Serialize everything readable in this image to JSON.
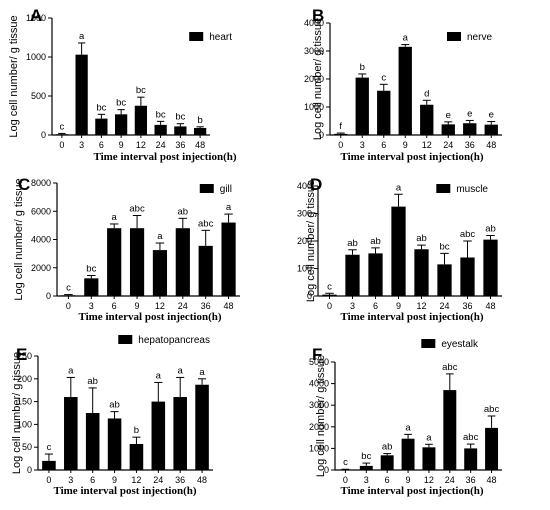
{
  "chart_data": [
    {
      "panel": "A",
      "type": "bar",
      "legend": "heart",
      "xlabel": "Time interval post injection(h)",
      "ylabel": "Log cell number/ g tissue",
      "categories": [
        "0",
        "3",
        "6",
        "9",
        "12",
        "24",
        "36",
        "48"
      ],
      "values": [
        10,
        1030,
        210,
        265,
        375,
        130,
        110,
        90
      ],
      "errors": [
        10,
        150,
        55,
        60,
        110,
        45,
        35,
        15
      ],
      "labels": [
        "c",
        "a",
        "bc",
        "bc",
        "bc",
        "bc",
        "bc",
        "b"
      ],
      "ylim": [
        0,
        1500
      ],
      "yticks": [
        "0",
        "500",
        "1000",
        "1500"
      ]
    },
    {
      "panel": "B",
      "type": "bar",
      "legend": "nerve",
      "xlabel": "Time interval post injection(h)",
      "ylabel": "Log cell number/ g tissue",
      "categories": [
        "0",
        "3",
        "6",
        "9",
        "12",
        "24",
        "36",
        "48"
      ],
      "values": [
        40,
        2050,
        1580,
        3150,
        1080,
        380,
        420,
        370
      ],
      "errors": [
        30,
        130,
        230,
        80,
        160,
        90,
        100,
        110
      ],
      "labels": [
        "f",
        "b",
        "c",
        "a",
        "d",
        "e",
        "e",
        "e"
      ],
      "ylim": [
        0,
        4000
      ],
      "yticks": [
        "0",
        "1000",
        "2000",
        "3000",
        "4000"
      ]
    },
    {
      "panel": "C",
      "type": "bar",
      "legend": "gill",
      "xlabel": "Time interval post injection(h)",
      "ylabel": "Log cell number/ g tissue",
      "categories": [
        "0",
        "3",
        "6",
        "9",
        "12",
        "24",
        "36",
        "48"
      ],
      "values": [
        50,
        1250,
        4800,
        4800,
        3250,
        4800,
        3550,
        5200
      ],
      "errors": [
        50,
        200,
        300,
        900,
        500,
        700,
        1100,
        600
      ],
      "labels": [
        "c",
        "bc",
        "a",
        "abc",
        "a",
        "ab",
        "abc",
        "a"
      ],
      "ylim": [
        0,
        8000
      ],
      "yticks": [
        "0",
        "2000",
        "4000",
        "6000",
        "8000"
      ]
    },
    {
      "panel": "D",
      "type": "bar",
      "legend": "muscle",
      "xlabel": "Time interval post injection(h)",
      "ylabel": "Log cell number/ g tissue",
      "categories": [
        "0",
        "3",
        "6",
        "9",
        "12",
        "24",
        "36",
        "48"
      ],
      "values": [
        5,
        150,
        155,
        325,
        170,
        115,
        140,
        205
      ],
      "errors": [
        5,
        18,
        20,
        45,
        15,
        40,
        60,
        15
      ],
      "labels": [
        "c",
        "ab",
        "ab",
        "a",
        "ab",
        "bc",
        "abc",
        "ab"
      ],
      "ylim": [
        0,
        400
      ],
      "yticks": [
        "0",
        "100",
        "200",
        "300",
        "400"
      ]
    },
    {
      "panel": "E",
      "type": "bar",
      "legend": "hepatopancreas",
      "xlabel": "Time interval post injection(h)",
      "ylabel": "Log cell number/ g tissue",
      "categories": [
        "0",
        "3",
        "6",
        "9",
        "12",
        "24",
        "36",
        "48"
      ],
      "values": [
        20,
        160,
        125,
        113,
        57,
        150,
        160,
        187
      ],
      "errors": [
        15,
        43,
        55,
        15,
        15,
        42,
        43,
        13
      ],
      "labels": [
        "c",
        "a",
        "ab",
        "ab",
        "b",
        "a",
        "a",
        "a"
      ],
      "ylim": [
        0,
        250
      ],
      "yticks": [
        "0",
        "50",
        "100",
        "150",
        "200",
        "250"
      ]
    },
    {
      "panel": "F",
      "type": "bar",
      "legend": "eyestalk",
      "xlabel": "Time interval post injection(h)",
      "ylabel": "Log cell number/ g tissue",
      "categories": [
        "0",
        "3",
        "6",
        "9",
        "12",
        "24",
        "36",
        "48"
      ],
      "values": [
        20,
        190,
        680,
        1450,
        1050,
        3700,
        1000,
        1950
      ],
      "errors": [
        15,
        130,
        80,
        200,
        140,
        750,
        200,
        550
      ],
      "labels": [
        "c",
        "bc",
        "ab",
        "a",
        "a",
        "abc",
        "abc",
        "abc"
      ],
      "ylim": [
        0,
        5000
      ],
      "yticks": [
        "0",
        "1000",
        "2000",
        "3000",
        "4000",
        "5000"
      ]
    }
  ]
}
